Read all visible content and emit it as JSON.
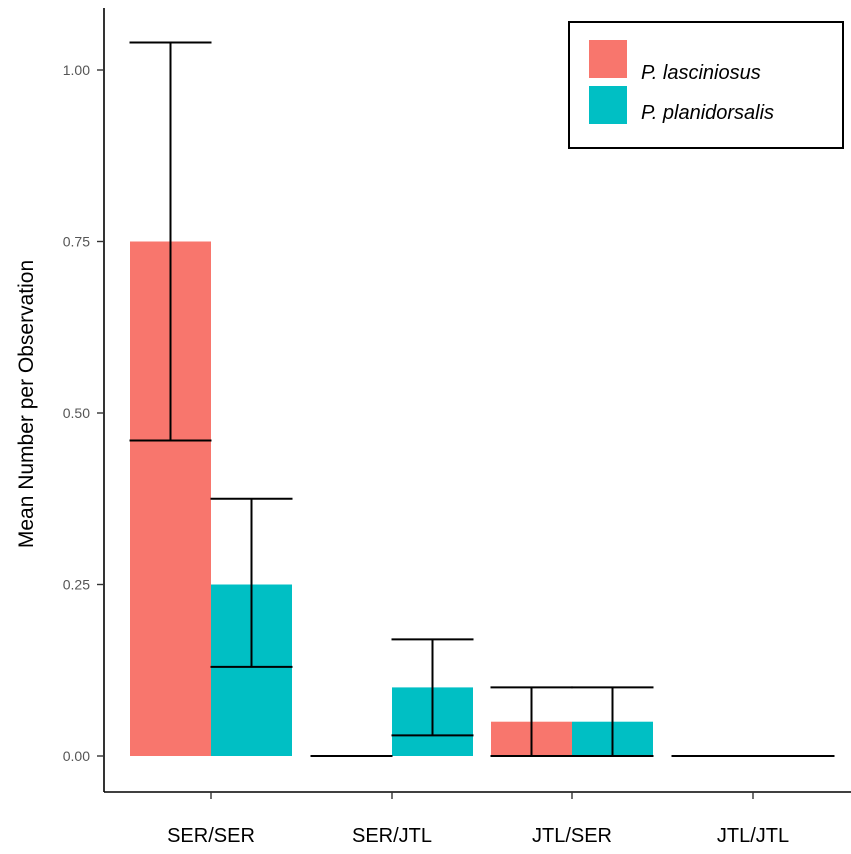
{
  "chart_data": {
    "type": "bar",
    "ylabel": "Mean Number per Observation",
    "xlabel": "",
    "categories": [
      "SER/SER",
      "SER/JTL",
      "JTL/SER",
      "JTL/JTL"
    ],
    "ylim": [
      -0.05,
      1.09
    ],
    "yticks": [
      0.0,
      0.25,
      0.5,
      0.75,
      1.0
    ],
    "ytick_labels": [
      "0.00",
      "0.25",
      "0.50",
      "0.75",
      "1.00"
    ],
    "grid": false,
    "legend_position": "top-right",
    "series": [
      {
        "name": "P. lasciniosus",
        "color": "#F8766D",
        "values": [
          0.75,
          0.0,
          0.05,
          0.0
        ],
        "err_low": [
          0.46,
          0.0,
          0.0,
          0.0
        ],
        "err_high": [
          1.04,
          0.0,
          0.1,
          0.0
        ]
      },
      {
        "name": "P. planidorsalis",
        "color": "#00BFC4",
        "values": [
          0.25,
          0.1,
          0.05,
          0.0
        ],
        "err_low": [
          0.13,
          0.03,
          0.0,
          0.0
        ],
        "err_high": [
          0.375,
          0.17,
          0.1,
          0.0
        ]
      }
    ]
  }
}
